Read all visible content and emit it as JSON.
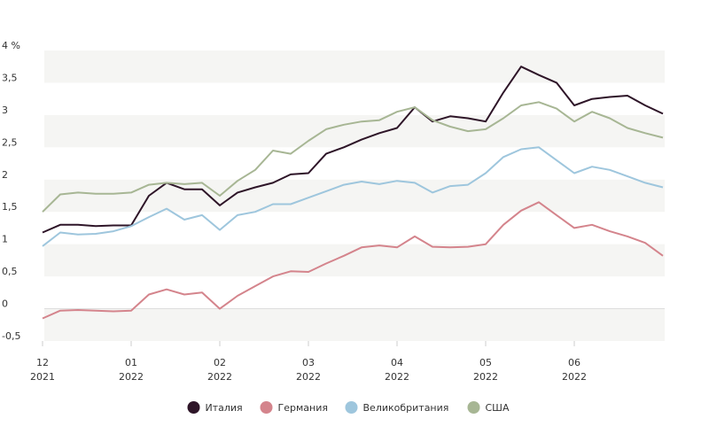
{
  "chart_data": {
    "type": "line",
    "categories": [
      "12\n2021",
      null,
      null,
      null,
      null,
      "01\n2022",
      null,
      null,
      null,
      null,
      "02\n2022",
      null,
      null,
      null,
      null,
      "03\n2022",
      null,
      null,
      null,
      null,
      "04\n2022",
      null,
      null,
      null,
      null,
      "05\n2022",
      null,
      null,
      null,
      null,
      "06\n2022",
      null,
      null,
      null,
      null,
      null
    ],
    "series": [
      {
        "name": "Италия",
        "color": "#2e1528",
        "values": [
          1.18,
          1.3,
          1.3,
          1.28,
          1.29,
          1.29,
          1.75,
          1.95,
          1.85,
          1.85,
          1.6,
          1.8,
          1.88,
          1.95,
          2.08,
          2.1,
          2.4,
          2.5,
          2.62,
          2.72,
          2.8,
          3.12,
          2.9,
          2.98,
          2.95,
          2.9,
          3.35,
          3.75,
          3.62,
          3.5,
          3.15,
          3.25,
          3.28,
          3.3,
          3.15,
          3.02
        ]
      },
      {
        "name": "Германия",
        "color": "#d4848c",
        "values": [
          -0.15,
          -0.03,
          -0.02,
          -0.03,
          -0.04,
          -0.03,
          0.22,
          0.3,
          0.22,
          0.25,
          0.0,
          0.2,
          0.35,
          0.5,
          0.58,
          0.57,
          0.7,
          0.82,
          0.95,
          0.98,
          0.95,
          1.12,
          0.96,
          0.95,
          0.96,
          1.0,
          1.3,
          1.52,
          1.65,
          1.45,
          1.25,
          1.3,
          1.2,
          1.12,
          1.02,
          0.82
        ]
      },
      {
        "name": "Великобритания",
        "color": "#9ec6dd",
        "values": [
          0.97,
          1.18,
          1.15,
          1.16,
          1.2,
          1.28,
          1.42,
          1.55,
          1.38,
          1.45,
          1.22,
          1.45,
          1.5,
          1.62,
          1.62,
          1.72,
          1.82,
          1.92,
          1.97,
          1.93,
          1.98,
          1.95,
          1.8,
          1.9,
          1.92,
          2.1,
          2.35,
          2.47,
          2.5,
          2.3,
          2.1,
          2.2,
          2.15,
          2.05,
          1.95,
          1.88
        ]
      },
      {
        "name": "США",
        "color": "#a7b694",
        "values": [
          1.5,
          1.77,
          1.8,
          1.78,
          1.78,
          1.8,
          1.92,
          1.95,
          1.93,
          1.95,
          1.75,
          1.98,
          2.15,
          2.45,
          2.4,
          2.6,
          2.78,
          2.85,
          2.9,
          2.92,
          3.05,
          3.12,
          2.92,
          2.82,
          2.75,
          2.78,
          2.95,
          3.15,
          3.2,
          3.1,
          2.9,
          3.05,
          2.95,
          2.8,
          2.72,
          2.65
        ]
      }
    ],
    "ylim": [
      -0.5,
      4
    ],
    "yticks": [
      {
        "value": -0.5,
        "label": "-0,5"
      },
      0,
      {
        "value": 0.5,
        "label": "0,5"
      },
      1,
      {
        "value": 1.5,
        "label": "1,5"
      },
      2,
      {
        "value": 2.5,
        "label": "2,5"
      },
      3,
      {
        "value": 3.5,
        "label": "3,5"
      },
      {
        "value": 4,
        "label": "4 %"
      }
    ],
    "bands": true,
    "band_color": "#f5f5f3",
    "legend": "bottom"
  }
}
